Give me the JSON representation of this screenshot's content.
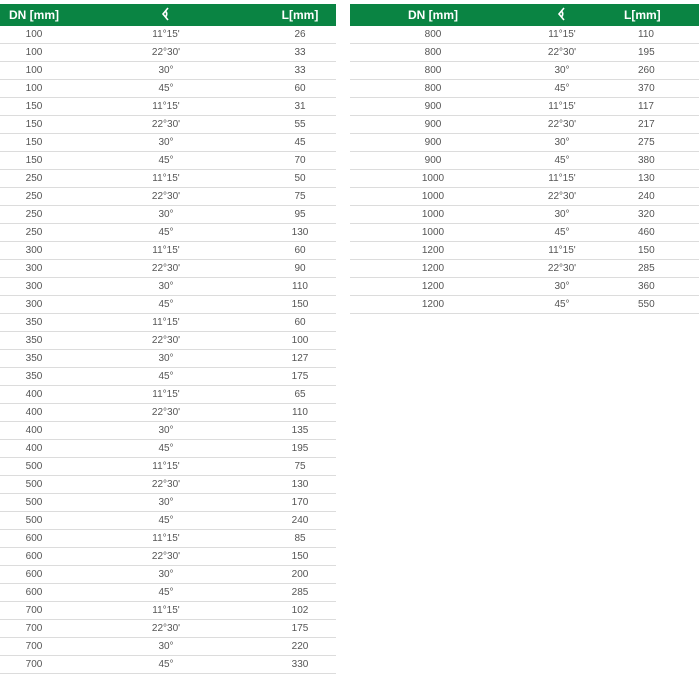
{
  "headers": {
    "dn": "DN [mm]",
    "angle_icon": "angle-icon",
    "l": "L[mm]"
  },
  "left_rows": [
    [
      "100",
      "11°15'",
      "26"
    ],
    [
      "100",
      "22°30'",
      "33"
    ],
    [
      "100",
      "30°",
      "33"
    ],
    [
      "100",
      "45°",
      "60"
    ],
    [
      "150",
      "11°15'",
      "31"
    ],
    [
      "150",
      "22°30'",
      "55"
    ],
    [
      "150",
      "30°",
      "45"
    ],
    [
      "150",
      "45°",
      "70"
    ],
    [
      "250",
      "11°15'",
      "50"
    ],
    [
      "250",
      "22°30'",
      "75"
    ],
    [
      "250",
      "30°",
      "95"
    ],
    [
      "250",
      "45°",
      "130"
    ],
    [
      "300",
      "11°15'",
      "60"
    ],
    [
      "300",
      "22°30'",
      "90"
    ],
    [
      "300",
      "30°",
      "110"
    ],
    [
      "300",
      "45°",
      "150"
    ],
    [
      "350",
      "11°15'",
      "60"
    ],
    [
      "350",
      "22°30'",
      "100"
    ],
    [
      "350",
      "30°",
      "127"
    ],
    [
      "350",
      "45°",
      "175"
    ],
    [
      "400",
      "11°15'",
      "65"
    ],
    [
      "400",
      "22°30'",
      "110"
    ],
    [
      "400",
      "30°",
      "135"
    ],
    [
      "400",
      "45°",
      "195"
    ],
    [
      "500",
      "11°15'",
      "75"
    ],
    [
      "500",
      "22°30'",
      "130"
    ],
    [
      "500",
      "30°",
      "170"
    ],
    [
      "500",
      "45°",
      "240"
    ],
    [
      "600",
      "11°15'",
      "85"
    ],
    [
      "600",
      "22°30'",
      "150"
    ],
    [
      "600",
      "30°",
      "200"
    ],
    [
      "600",
      "45°",
      "285"
    ],
    [
      "700",
      "11°15'",
      "102"
    ],
    [
      "700",
      "22°30'",
      "175"
    ],
    [
      "700",
      "30°",
      "220"
    ],
    [
      "700",
      "45°",
      "330"
    ]
  ],
  "right_rows": [
    [
      "800",
      "11°15'",
      "110"
    ],
    [
      "800",
      "22°30'",
      "195"
    ],
    [
      "800",
      "30°",
      "260"
    ],
    [
      "800",
      "45°",
      "370"
    ],
    [
      "900",
      "11°15'",
      "117"
    ],
    [
      "900",
      "22°30'",
      "217"
    ],
    [
      "900",
      "30°",
      "275"
    ],
    [
      "900",
      "45°",
      "380"
    ],
    [
      "1000",
      "11°15'",
      "130"
    ],
    [
      "1000",
      "22°30'",
      "240"
    ],
    [
      "1000",
      "30°",
      "320"
    ],
    [
      "1000",
      "45°",
      "460"
    ],
    [
      "1200",
      "11°15'",
      "150"
    ],
    [
      "1200",
      "22°30'",
      "285"
    ],
    [
      "1200",
      "30°",
      "360"
    ],
    [
      "1200",
      "45°",
      "550"
    ]
  ]
}
